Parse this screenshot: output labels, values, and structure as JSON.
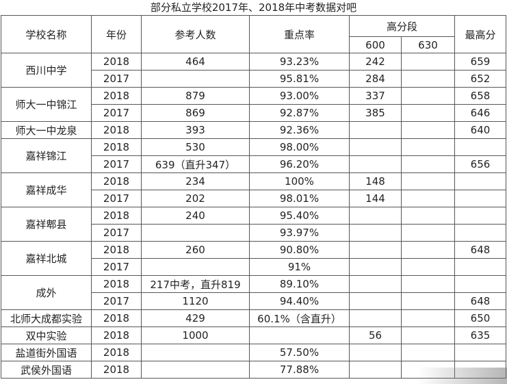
{
  "title": "部分私立学校2017年、2018年中考数据对吧",
  "headers": {
    "school": "学校名称",
    "year": "年份",
    "examinees": "参考人数",
    "key_rate": "重点率",
    "high_band": "高分段",
    "band_600": "600",
    "band_630": "630",
    "top_score": "最高分"
  },
  "schools": [
    {
      "name": "西川中学",
      "rows": [
        {
          "year": "2018",
          "examinees": "464",
          "key_rate": "93.23%",
          "s600": "242",
          "s630": "",
          "top": "659"
        },
        {
          "year": "2017",
          "examinees": "",
          "key_rate": "95.81%",
          "s600": "284",
          "s630": "",
          "top": "652"
        }
      ]
    },
    {
      "name": "师大一中锦江",
      "rows": [
        {
          "year": "2018",
          "examinees": "879",
          "key_rate": "93.00%",
          "s600": "337",
          "s630": "",
          "top": "658"
        },
        {
          "year": "2017",
          "examinees": "869",
          "key_rate": "92.87%",
          "s600": "385",
          "s630": "",
          "top": "646"
        }
      ]
    },
    {
      "name": "师大一中龙泉",
      "rows": [
        {
          "year": "2018",
          "examinees": "393",
          "key_rate": "92.36%",
          "s600": "",
          "s630": "",
          "top": "640"
        }
      ]
    },
    {
      "name": "嘉祥锦江",
      "rows": [
        {
          "year": "2018",
          "examinees": "530",
          "key_rate": "98.00%",
          "s600": "",
          "s630": "",
          "top": ""
        },
        {
          "year": "2017",
          "examinees": "639（直升347）",
          "key_rate": "96.20%",
          "s600": "",
          "s630": "",
          "top": "656"
        }
      ]
    },
    {
      "name": "嘉祥成华",
      "rows": [
        {
          "year": "2018",
          "examinees": "234",
          "key_rate": "100%",
          "s600": "148",
          "s630": "",
          "top": ""
        },
        {
          "year": "2017",
          "examinees": "202",
          "key_rate": "98.01%",
          "s600": "144",
          "s630": "",
          "top": ""
        }
      ]
    },
    {
      "name": "嘉祥郫县",
      "rows": [
        {
          "year": "2018",
          "examinees": "240",
          "key_rate": "95.40%",
          "s600": "",
          "s630": "",
          "top": ""
        },
        {
          "year": "2017",
          "examinees": "",
          "key_rate": "93.97%",
          "s600": "",
          "s630": "",
          "top": ""
        }
      ]
    },
    {
      "name": "嘉祥北城",
      "rows": [
        {
          "year": "2018",
          "examinees": "260",
          "key_rate": "90.80%",
          "s600": "",
          "s630": "",
          "top": "648"
        },
        {
          "year": "2017",
          "examinees": "",
          "key_rate": "91%",
          "s600": "",
          "s630": "",
          "top": ""
        }
      ]
    },
    {
      "name": "成外",
      "rows": [
        {
          "year": "2018",
          "examinees": "217中考，直升819",
          "key_rate": "89.10%",
          "s600": "",
          "s630": "",
          "top": ""
        },
        {
          "year": "2017",
          "examinees": "1120",
          "key_rate": "94.40%",
          "s600": "",
          "s630": "",
          "top": "648"
        }
      ]
    },
    {
      "name": "北师大成都实验",
      "rows": [
        {
          "year": "2018",
          "examinees": "429",
          "key_rate": "60.1%（含直升）",
          "s600": "",
          "s630": "",
          "top": "650"
        }
      ]
    },
    {
      "name": "双中实验",
      "rows": [
        {
          "year": "2018",
          "examinees": "1000",
          "key_rate": "",
          "s600": "56",
          "s630": "",
          "top": "635"
        }
      ]
    },
    {
      "name": "盐道街外国语",
      "rows": [
        {
          "year": "2018",
          "examinees": "",
          "key_rate": "57.50%",
          "s600": "",
          "s630": "",
          "top": ""
        }
      ]
    },
    {
      "name": "武侯外国语",
      "rows": [
        {
          "year": "2018",
          "examinees": "",
          "key_rate": "77.88%",
          "s600": "",
          "s630": "",
          "top": ""
        }
      ]
    }
  ]
}
